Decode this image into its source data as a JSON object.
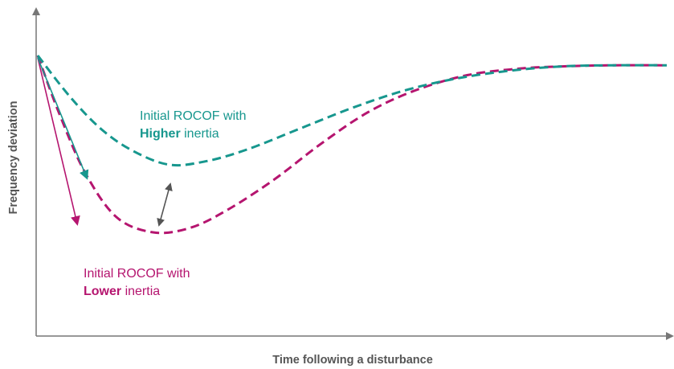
{
  "chart_data": {
    "type": "line",
    "xlabel": "Time following a disturbance",
    "ylabel": "Frequency deviation",
    "colors": {
      "higher": "#17978e",
      "lower": "#b5156f",
      "axis": "#777777",
      "gap_arrow": "#555555"
    },
    "series": [
      {
        "id": "higher",
        "style": "dashed",
        "points": [
          [
            0,
            0
          ],
          [
            0.06,
            -0.37
          ],
          [
            0.12,
            -0.67
          ],
          [
            0.18,
            -0.87
          ],
          [
            0.25,
            -1.0
          ],
          [
            0.32,
            -0.97
          ],
          [
            0.4,
            -0.86
          ],
          [
            0.5,
            -0.67
          ],
          [
            0.6,
            -0.48
          ],
          [
            0.7,
            -0.32
          ],
          [
            0.8,
            -0.21
          ],
          [
            0.9,
            -0.14
          ],
          [
            1.0,
            -0.1
          ],
          [
            1.1,
            -0.09
          ],
          [
            1.2,
            -0.09
          ]
        ]
      },
      {
        "id": "lower",
        "style": "dashed",
        "points": [
          [
            0,
            0
          ],
          [
            0.04,
            -0.52
          ],
          [
            0.09,
            -1.07
          ],
          [
            0.15,
            -1.48
          ],
          [
            0.22,
            -1.62
          ],
          [
            0.29,
            -1.58
          ],
          [
            0.36,
            -1.42
          ],
          [
            0.45,
            -1.14
          ],
          [
            0.54,
            -0.81
          ],
          [
            0.63,
            -0.52
          ],
          [
            0.72,
            -0.32
          ],
          [
            0.82,
            -0.18
          ],
          [
            0.92,
            -0.12
          ],
          [
            1.0,
            -0.1
          ],
          [
            1.1,
            -0.09
          ],
          [
            1.2,
            -0.09
          ]
        ]
      }
    ],
    "annotations": [
      {
        "id": "higher",
        "line1": "Initial ROCOF with",
        "line2_bold": "Higher",
        "line2_rest": " inertia"
      },
      {
        "id": "lower",
        "line1": "Initial ROCOF with",
        "line2_bold": "Lower",
        "line2_rest": " inertia"
      }
    ]
  }
}
